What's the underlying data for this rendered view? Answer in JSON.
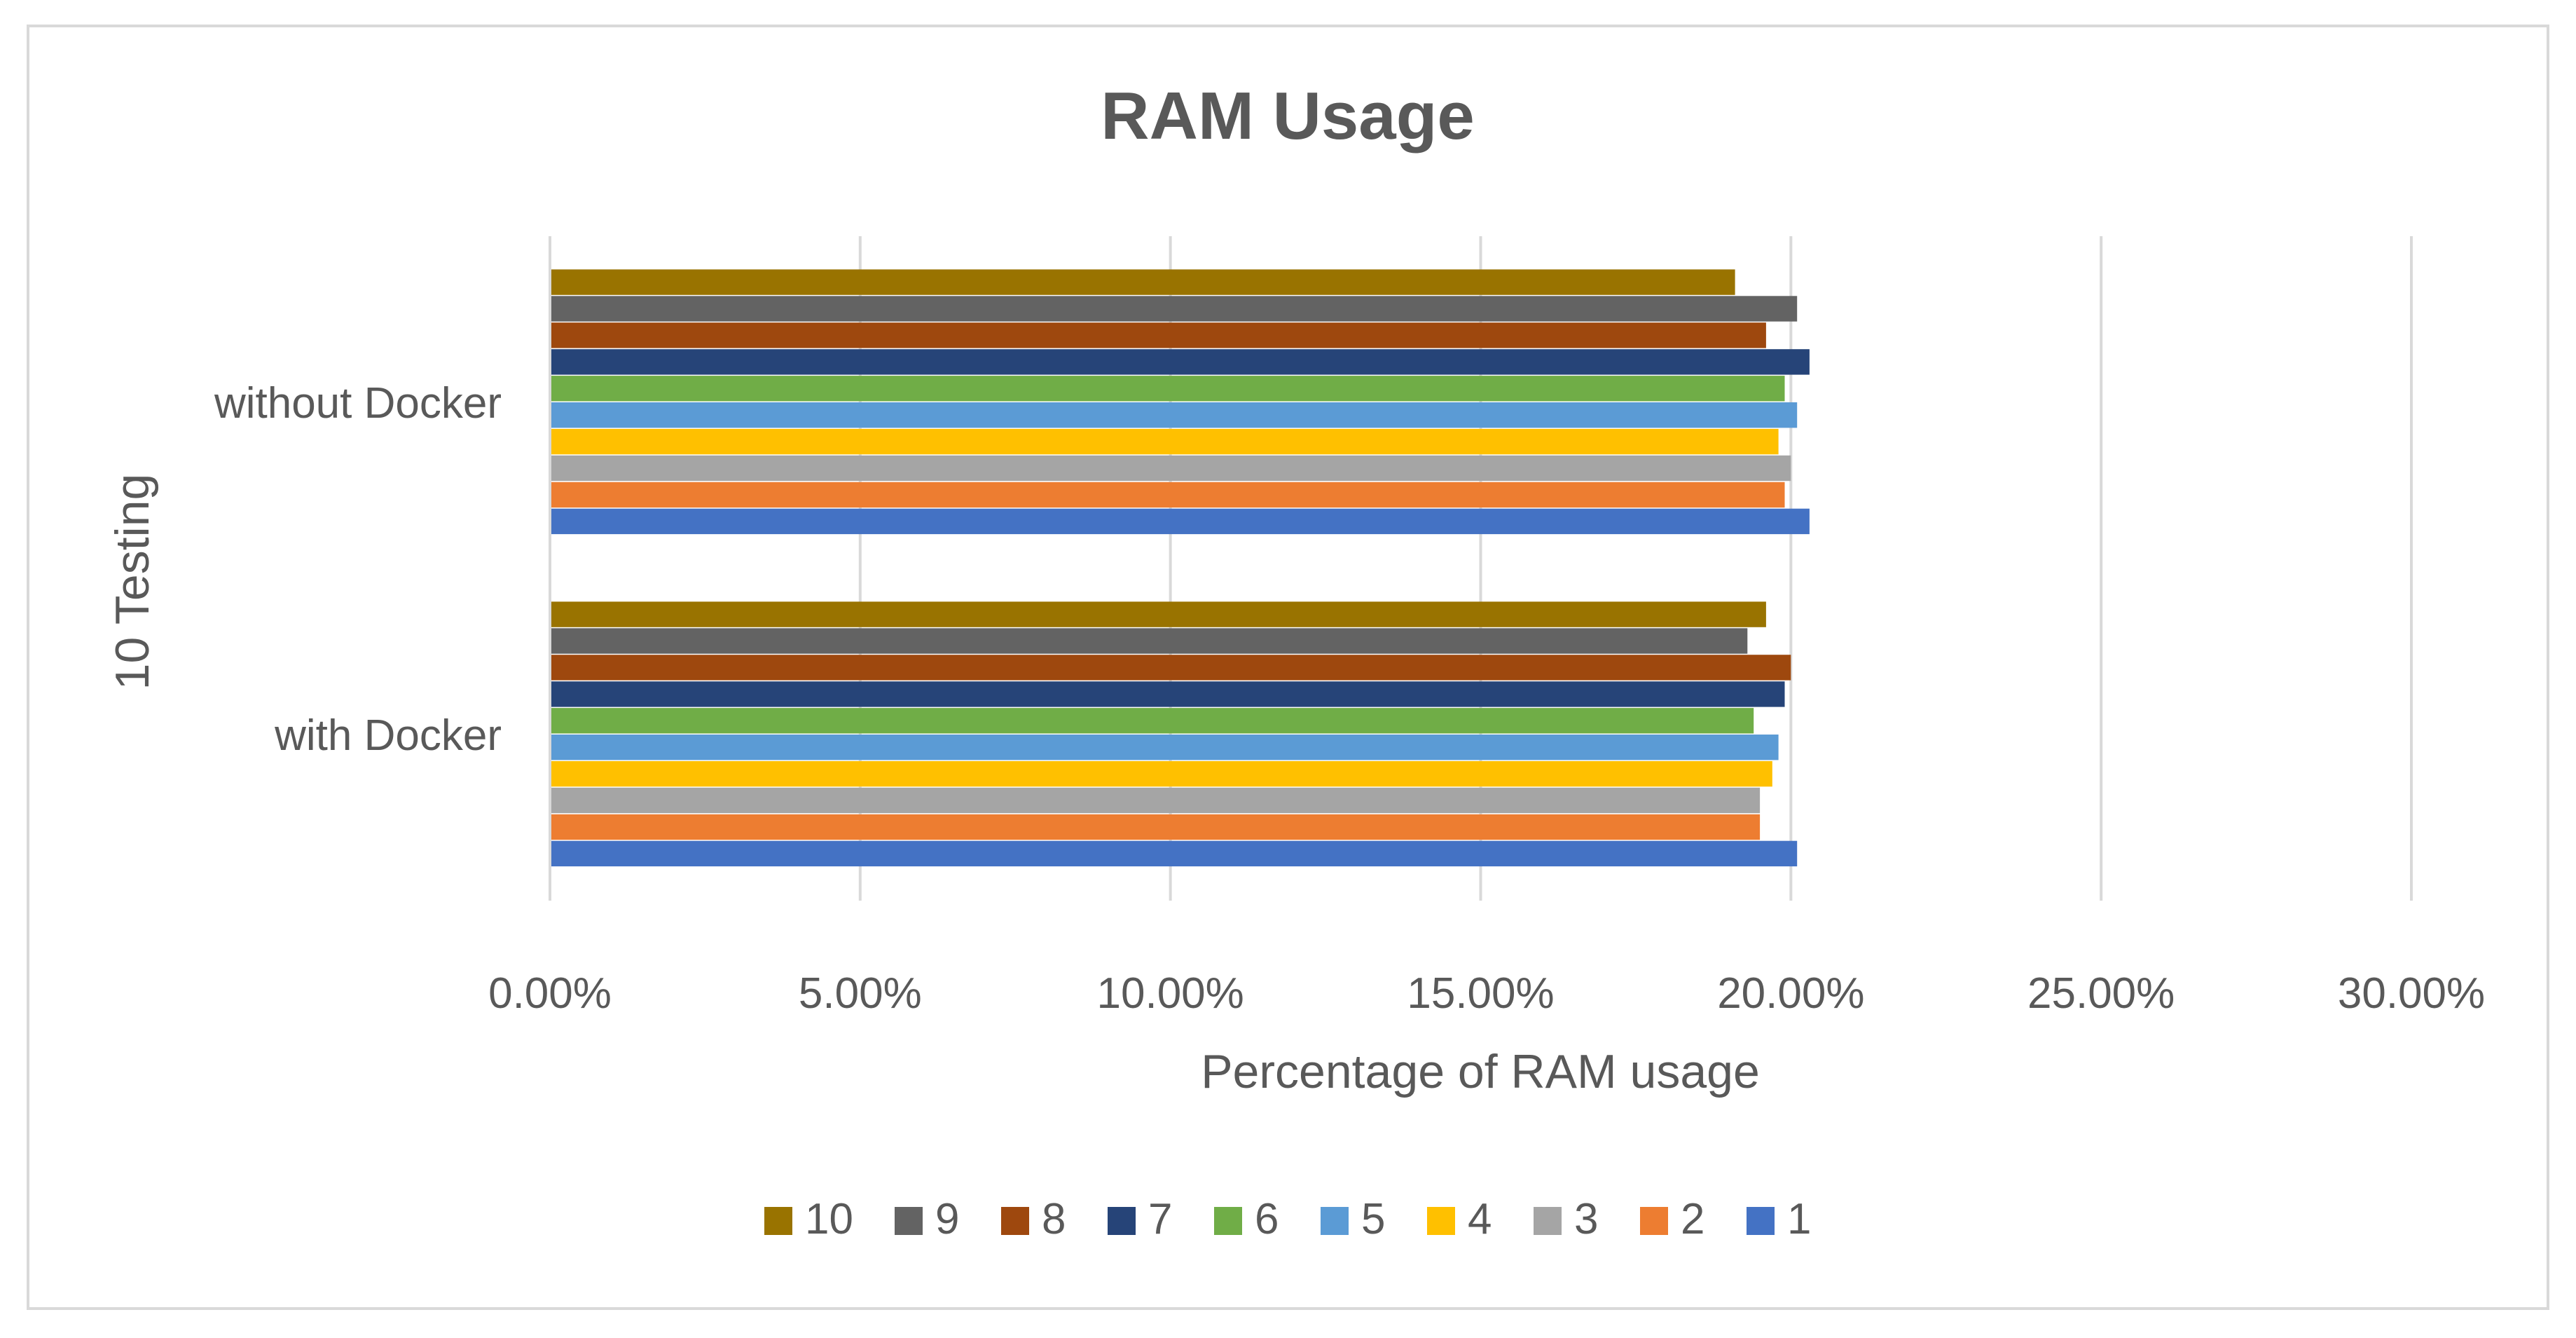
{
  "chart_data": {
    "type": "bar",
    "orientation": "horizontal",
    "title": "RAM Usage",
    "xlabel": "Percentage of RAM usage",
    "ylabel": "10 Testing",
    "categories": [
      "without Docker",
      "with Docker"
    ],
    "xlim": [
      0,
      30
    ],
    "x_ticks": [
      "0.00%",
      "5.00%",
      "10.00%",
      "15.00%",
      "20.00%",
      "25.00%",
      "30.00%"
    ],
    "grid": "vertical",
    "legend_position": "bottom",
    "series": [
      {
        "name": "1",
        "color": "#4472C4",
        "values": [
          20.3,
          20.1
        ]
      },
      {
        "name": "2",
        "color": "#ED7D31",
        "values": [
          19.9,
          19.5
        ]
      },
      {
        "name": "3",
        "color": "#A5A5A5",
        "values": [
          20.0,
          19.5
        ]
      },
      {
        "name": "4",
        "color": "#FFC000",
        "values": [
          19.8,
          19.7
        ]
      },
      {
        "name": "5",
        "color": "#5B9BD5",
        "values": [
          20.1,
          19.8
        ]
      },
      {
        "name": "6",
        "color": "#70AD47",
        "values": [
          19.9,
          19.4
        ]
      },
      {
        "name": "7",
        "color": "#264478",
        "values": [
          20.3,
          19.9
        ]
      },
      {
        "name": "8",
        "color": "#9E480E",
        "values": [
          19.6,
          20.0
        ]
      },
      {
        "name": "9",
        "color": "#636363",
        "values": [
          20.1,
          19.3
        ]
      },
      {
        "name": "10",
        "color": "#997300",
        "values": [
          19.1,
          19.6
        ]
      }
    ],
    "legend_order": [
      "10",
      "9",
      "8",
      "7",
      "6",
      "5",
      "4",
      "3",
      "2",
      "1"
    ]
  }
}
